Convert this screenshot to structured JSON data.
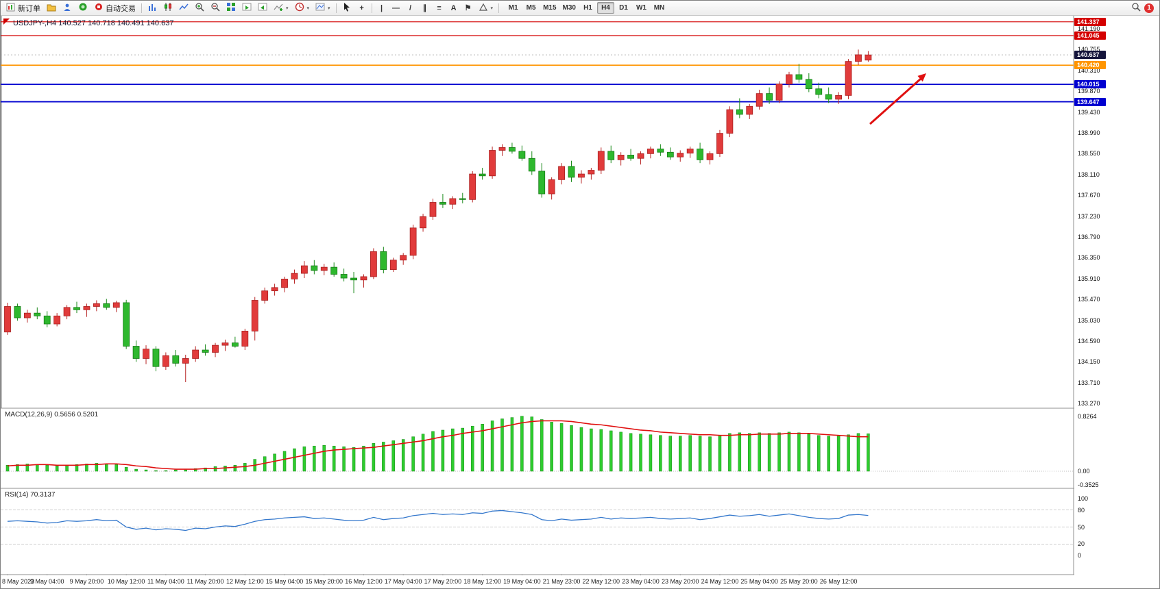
{
  "app": {
    "toolbar": {
      "new_order_label": "新订单",
      "autotrade_label": "自动交易",
      "timeframes": [
        "M1",
        "M5",
        "M15",
        "M30",
        "H1",
        "H4",
        "D1",
        "W1",
        "MN"
      ],
      "active_timeframe": "H4",
      "notification_count": "1",
      "tool_glyphs": {
        "crosshair": "+",
        "vertical_line": "|",
        "horizontal_line": "—",
        "trendline": "/",
        "channel": "∥",
        "fibonacci": "≡",
        "text": "A",
        "label": "⚑",
        "dropdown": "▾"
      }
    }
  },
  "chart": {
    "symbol_label": "USDJPY-,H4 140.527 140.718 140.491 140.637",
    "axis_ticks": [
      "141.190",
      "140.755",
      "140.310",
      "139.870",
      "139.430",
      "138.990",
      "138.550",
      "138.110",
      "137.670",
      "137.230",
      "136.790",
      "136.350",
      "135.910",
      "135.470",
      "135.030",
      "134.590",
      "134.150",
      "133.710",
      "133.270"
    ],
    "price_badges": [
      {
        "value": "141.337",
        "bg": "#d40000"
      },
      {
        "value": "141.045",
        "bg": "#d40000"
      },
      {
        "value": "140.637",
        "bg": "#15153c"
      },
      {
        "value": "140.420",
        "bg": "#ff9500"
      },
      {
        "value": "140.015",
        "bg": "#0000d0"
      },
      {
        "value": "139.647",
        "bg": "#0000d0"
      }
    ],
    "levels": [
      {
        "price": 141.337,
        "color": "#d40000",
        "width": 1.2,
        "style": "solid"
      },
      {
        "price": 141.045,
        "color": "#d40000",
        "width": 1.2,
        "style": "solid"
      },
      {
        "price": 140.637,
        "color": "#b5b5b5",
        "width": 1,
        "style": "dotted"
      },
      {
        "price": 140.42,
        "color": "#ff9500",
        "width": 1.6,
        "style": "solid"
      },
      {
        "price": 140.015,
        "color": "#0000d0",
        "width": 1.8,
        "style": "solid"
      },
      {
        "price": 139.647,
        "color": "#0000d0",
        "width": 1.8,
        "style": "solid"
      }
    ],
    "arrow_annotation": {
      "color": "#e01010"
    }
  },
  "chart_data": {
    "type": "candlestick",
    "title": "USDJPY-,H4",
    "timeframe": "H4",
    "ohlc": {
      "open": "140.527",
      "high": "140.718",
      "low": "140.491",
      "close": "140.637"
    },
    "y_range": [
      133.17,
      141.45
    ],
    "up_color": "#e13b3b",
    "down_color": "#2eb82e",
    "candles_per_label": 4,
    "time_labels": [
      "8 May 2023",
      "9 May 04:00",
      "9 May 20:00",
      "10 May 12:00",
      "11 May 04:00",
      "11 May 20:00",
      "12 May 12:00",
      "15 May 04:00",
      "15 May 20:00",
      "16 May 12:00",
      "17 May 04:00",
      "17 May 20:00",
      "18 May 12:00",
      "19 May 04:00",
      "21 May 23:00",
      "22 May 12:00",
      "23 May 04:00",
      "23 May 20:00",
      "24 May 12:00",
      "25 May 04:00",
      "25 May 20:00",
      "26 May 12:00"
    ],
    "candles": [
      [
        134.78,
        135.4,
        134.72,
        135.32
      ],
      [
        135.32,
        135.38,
        135.02,
        135.08
      ],
      [
        135.08,
        135.25,
        134.98,
        135.18
      ],
      [
        135.18,
        135.3,
        135.05,
        135.12
      ],
      [
        135.12,
        135.22,
        134.88,
        134.95
      ],
      [
        134.95,
        135.18,
        134.9,
        135.12
      ],
      [
        135.12,
        135.35,
        135.05,
        135.3
      ],
      [
        135.3,
        135.42,
        135.18,
        135.25
      ],
      [
        135.25,
        135.38,
        135.1,
        135.32
      ],
      [
        135.32,
        135.45,
        135.22,
        135.38
      ],
      [
        135.38,
        135.48,
        135.25,
        135.3
      ],
      [
        135.3,
        135.44,
        135.2,
        135.4
      ],
      [
        135.4,
        135.46,
        134.42,
        134.48
      ],
      [
        134.48,
        134.6,
        134.15,
        134.22
      ],
      [
        134.22,
        134.5,
        134.1,
        134.42
      ],
      [
        134.42,
        134.48,
        133.95,
        134.05
      ],
      [
        134.05,
        134.35,
        133.98,
        134.28
      ],
      [
        134.28,
        134.4,
        134.05,
        134.12
      ],
      [
        134.12,
        134.3,
        133.72,
        134.22
      ],
      [
        134.22,
        134.48,
        134.15,
        134.4
      ],
      [
        134.4,
        134.52,
        134.28,
        134.35
      ],
      [
        134.35,
        134.55,
        134.25,
        134.5
      ],
      [
        134.5,
        134.62,
        134.38,
        134.55
      ],
      [
        134.55,
        134.68,
        134.45,
        134.48
      ],
      [
        134.48,
        134.85,
        134.4,
        134.8
      ],
      [
        134.8,
        135.52,
        134.6,
        135.45
      ],
      [
        135.45,
        135.72,
        135.38,
        135.65
      ],
      [
        135.65,
        135.8,
        135.55,
        135.72
      ],
      [
        135.72,
        135.95,
        135.62,
        135.9
      ],
      [
        135.9,
        136.1,
        135.8,
        136.02
      ],
      [
        136.02,
        136.28,
        135.92,
        136.18
      ],
      [
        136.18,
        136.3,
        136.0,
        136.08
      ],
      [
        136.08,
        136.22,
        135.98,
        136.15
      ],
      [
        136.15,
        136.25,
        135.95,
        136.0
      ],
      [
        136.0,
        136.12,
        135.85,
        135.92
      ],
      [
        135.92,
        136.05,
        135.6,
        135.88
      ],
      [
        135.88,
        136.0,
        135.72,
        135.95
      ],
      [
        135.95,
        136.55,
        135.9,
        136.48
      ],
      [
        136.48,
        136.58,
        136.02,
        136.1
      ],
      [
        136.1,
        136.35,
        136.05,
        136.3
      ],
      [
        136.3,
        136.45,
        136.2,
        136.4
      ],
      [
        136.4,
        137.05,
        136.32,
        136.98
      ],
      [
        136.98,
        137.28,
        136.9,
        137.22
      ],
      [
        137.22,
        137.6,
        137.15,
        137.52
      ],
      [
        137.52,
        137.7,
        137.4,
        137.48
      ],
      [
        137.48,
        137.65,
        137.38,
        137.6
      ],
      [
        137.6,
        137.72,
        137.5,
        137.58
      ],
      [
        137.58,
        138.18,
        137.52,
        138.12
      ],
      [
        138.12,
        138.25,
        138.0,
        138.08
      ],
      [
        138.08,
        138.7,
        138.02,
        138.62
      ],
      [
        138.62,
        138.75,
        138.5,
        138.68
      ],
      [
        138.68,
        138.78,
        138.55,
        138.6
      ],
      [
        138.6,
        138.72,
        138.4,
        138.45
      ],
      [
        138.45,
        138.6,
        138.1,
        138.18
      ],
      [
        138.18,
        138.35,
        137.62,
        137.7
      ],
      [
        137.7,
        138.05,
        137.58,
        138.0
      ],
      [
        138.0,
        138.35,
        137.9,
        138.28
      ],
      [
        138.28,
        138.4,
        137.95,
        138.05
      ],
      [
        138.05,
        138.2,
        137.92,
        138.12
      ],
      [
        138.12,
        138.25,
        138.0,
        138.2
      ],
      [
        138.2,
        138.68,
        138.12,
        138.6
      ],
      [
        138.6,
        138.72,
        138.35,
        138.42
      ],
      [
        138.42,
        138.58,
        138.3,
        138.52
      ],
      [
        138.52,
        138.65,
        138.4,
        138.45
      ],
      [
        138.45,
        138.6,
        138.32,
        138.55
      ],
      [
        138.55,
        138.7,
        138.45,
        138.65
      ],
      [
        138.65,
        138.75,
        138.5,
        138.58
      ],
      [
        138.58,
        138.68,
        138.42,
        138.48
      ],
      [
        138.48,
        138.62,
        138.38,
        138.56
      ],
      [
        138.56,
        138.7,
        138.46,
        138.65
      ],
      [
        138.65,
        138.78,
        138.35,
        138.42
      ],
      [
        138.42,
        138.6,
        138.32,
        138.55
      ],
      [
        138.55,
        139.05,
        138.48,
        138.98
      ],
      [
        138.98,
        139.55,
        138.9,
        139.48
      ],
      [
        139.48,
        139.72,
        139.3,
        139.38
      ],
      [
        139.38,
        139.6,
        139.28,
        139.55
      ],
      [
        139.55,
        139.9,
        139.48,
        139.82
      ],
      [
        139.82,
        139.95,
        139.6,
        139.68
      ],
      [
        139.68,
        140.08,
        139.62,
        140.02
      ],
      [
        140.02,
        140.28,
        139.95,
        140.22
      ],
      [
        140.22,
        140.45,
        140.05,
        140.12
      ],
      [
        140.12,
        140.25,
        139.85,
        139.92
      ],
      [
        139.92,
        140.05,
        139.72,
        139.8
      ],
      [
        139.8,
        139.95,
        139.62,
        139.7
      ],
      [
        139.7,
        139.85,
        139.6,
        139.78
      ],
      [
        139.78,
        140.55,
        139.7,
        140.5
      ],
      [
        140.5,
        140.75,
        140.42,
        140.64
      ],
      [
        140.527,
        140.718,
        140.491,
        140.637
      ]
    ],
    "macd": {
      "label": "MACD(12,26,9) 0.5656 0.5201",
      "axis_labels": [
        "0.8264",
        "0.00",
        "-0.3525"
      ],
      "max": 0.8264,
      "min": -0.3525,
      "hist_color": "#2ecc2e",
      "signal_color": "#e01010",
      "histogram": [
        0.09,
        0.1,
        0.11,
        0.1,
        0.09,
        0.08,
        0.09,
        0.1,
        0.11,
        0.12,
        0.11,
        0.1,
        0.06,
        0.03,
        0.02,
        0.01,
        0.01,
        0.02,
        0.02,
        0.04,
        0.05,
        0.07,
        0.08,
        0.09,
        0.12,
        0.18,
        0.22,
        0.26,
        0.3,
        0.34,
        0.37,
        0.38,
        0.39,
        0.38,
        0.37,
        0.36,
        0.38,
        0.42,
        0.44,
        0.46,
        0.48,
        0.52,
        0.56,
        0.6,
        0.62,
        0.64,
        0.65,
        0.68,
        0.71,
        0.76,
        0.79,
        0.81,
        0.83,
        0.82,
        0.78,
        0.74,
        0.72,
        0.69,
        0.66,
        0.64,
        0.63,
        0.61,
        0.59,
        0.57,
        0.56,
        0.55,
        0.54,
        0.53,
        0.53,
        0.54,
        0.53,
        0.52,
        0.54,
        0.57,
        0.58,
        0.57,
        0.58,
        0.57,
        0.58,
        0.59,
        0.58,
        0.56,
        0.54,
        0.53,
        0.53,
        0.55,
        0.57,
        0.5656
      ],
      "signal": [
        0.08,
        0.09,
        0.09,
        0.1,
        0.1,
        0.09,
        0.09,
        0.09,
        0.1,
        0.1,
        0.11,
        0.11,
        0.1,
        0.08,
        0.07,
        0.05,
        0.04,
        0.03,
        0.03,
        0.03,
        0.04,
        0.04,
        0.05,
        0.06,
        0.07,
        0.09,
        0.12,
        0.15,
        0.18,
        0.21,
        0.24,
        0.27,
        0.3,
        0.32,
        0.33,
        0.34,
        0.35,
        0.36,
        0.38,
        0.4,
        0.42,
        0.44,
        0.46,
        0.49,
        0.52,
        0.54,
        0.57,
        0.59,
        0.61,
        0.64,
        0.67,
        0.7,
        0.73,
        0.75,
        0.76,
        0.76,
        0.76,
        0.75,
        0.73,
        0.71,
        0.7,
        0.68,
        0.66,
        0.64,
        0.62,
        0.61,
        0.59,
        0.58,
        0.57,
        0.56,
        0.55,
        0.55,
        0.54,
        0.54,
        0.55,
        0.55,
        0.56,
        0.56,
        0.56,
        0.57,
        0.57,
        0.57,
        0.56,
        0.55,
        0.54,
        0.53,
        0.52,
        0.5201
      ]
    },
    "rsi": {
      "label": "RSI(14) 70.3137",
      "axis_labels": [
        "100",
        "80",
        "50",
        "20",
        "0"
      ],
      "axis_values": [
        100,
        80,
        50,
        20,
        0
      ],
      "levels": [
        80,
        50,
        20
      ],
      "color": "#3377cc",
      "range": [
        0,
        100
      ],
      "values": [
        60,
        61,
        60,
        59,
        57,
        58,
        61,
        60,
        61,
        63,
        61,
        62,
        50,
        46,
        48,
        45,
        47,
        46,
        44,
        48,
        47,
        50,
        52,
        51,
        55,
        60,
        63,
        64,
        66,
        67,
        68,
        65,
        66,
        64,
        62,
        61,
        62,
        67,
        63,
        65,
        66,
        70,
        72,
        74,
        72,
        73,
        72,
        75,
        74,
        78,
        79,
        77,
        75,
        72,
        63,
        61,
        64,
        62,
        63,
        64,
        67,
        64,
        66,
        65,
        66,
        67,
        65,
        64,
        65,
        66,
        63,
        65,
        68,
        71,
        69,
        70,
        72,
        69,
        71,
        73,
        70,
        67,
        65,
        64,
        65,
        71,
        72,
        70.31
      ]
    }
  }
}
